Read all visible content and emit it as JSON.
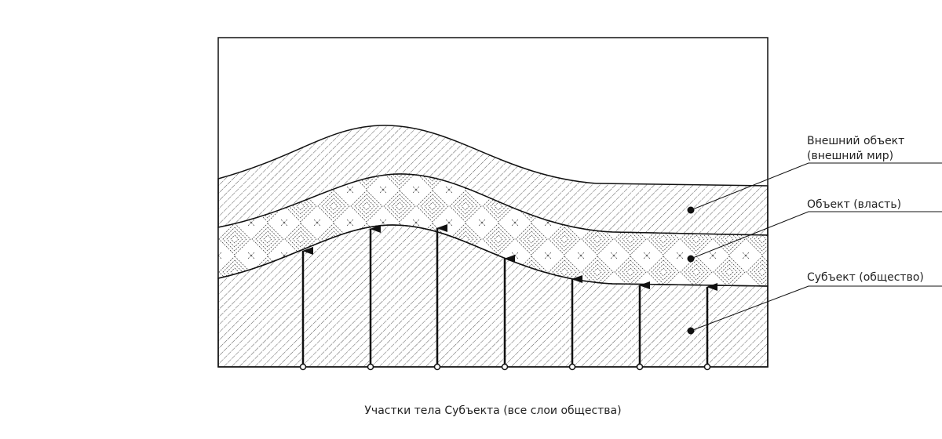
{
  "labels": {
    "external": [
      "Внешний объект",
      "(внешний мир)"
    ],
    "object": "Объект (власть)",
    "subject": "Субъект (общество)"
  },
  "caption": "Участки тела Субъекта (все слои общества)"
}
